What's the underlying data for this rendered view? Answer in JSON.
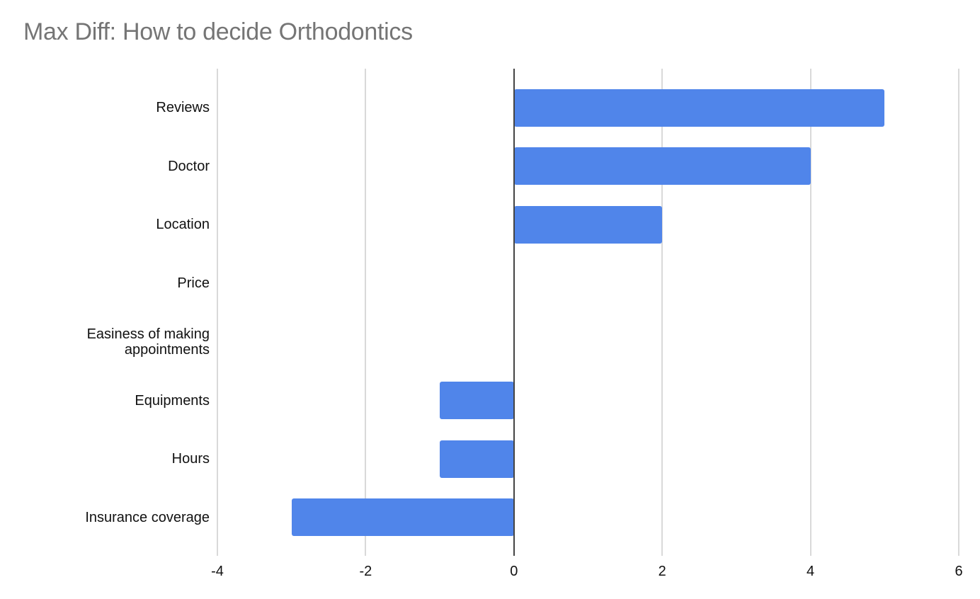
{
  "chart_data": {
    "type": "bar",
    "orientation": "horizontal",
    "title": "Max Diff: How to decide Orthodontics",
    "xlabel": "",
    "ylabel": "",
    "categories": [
      "Reviews",
      "Doctor",
      "Location",
      "Price",
      "Easiness of making appointments",
      "Equipments",
      "Hours",
      "Insurance coverage"
    ],
    "values": [
      5,
      4,
      2,
      0,
      0,
      -1,
      -1,
      -3
    ],
    "xlim": [
      -4,
      6
    ],
    "x_ticks": [
      "-4",
      "-2",
      "0",
      "2",
      "4",
      "6"
    ],
    "grid": true,
    "legend": "none",
    "bar_color": "#5085ea"
  },
  "labels": {
    "title": "Max Diff: How to decide Orthodontics",
    "categories": [
      "Reviews",
      "Doctor",
      "Location",
      "Price",
      "Easiness of making\nappointments",
      "Equipments",
      "Hours",
      "Insurance coverage"
    ],
    "ticks": [
      "-4",
      "-2",
      "0",
      "2",
      "4",
      "6"
    ]
  }
}
